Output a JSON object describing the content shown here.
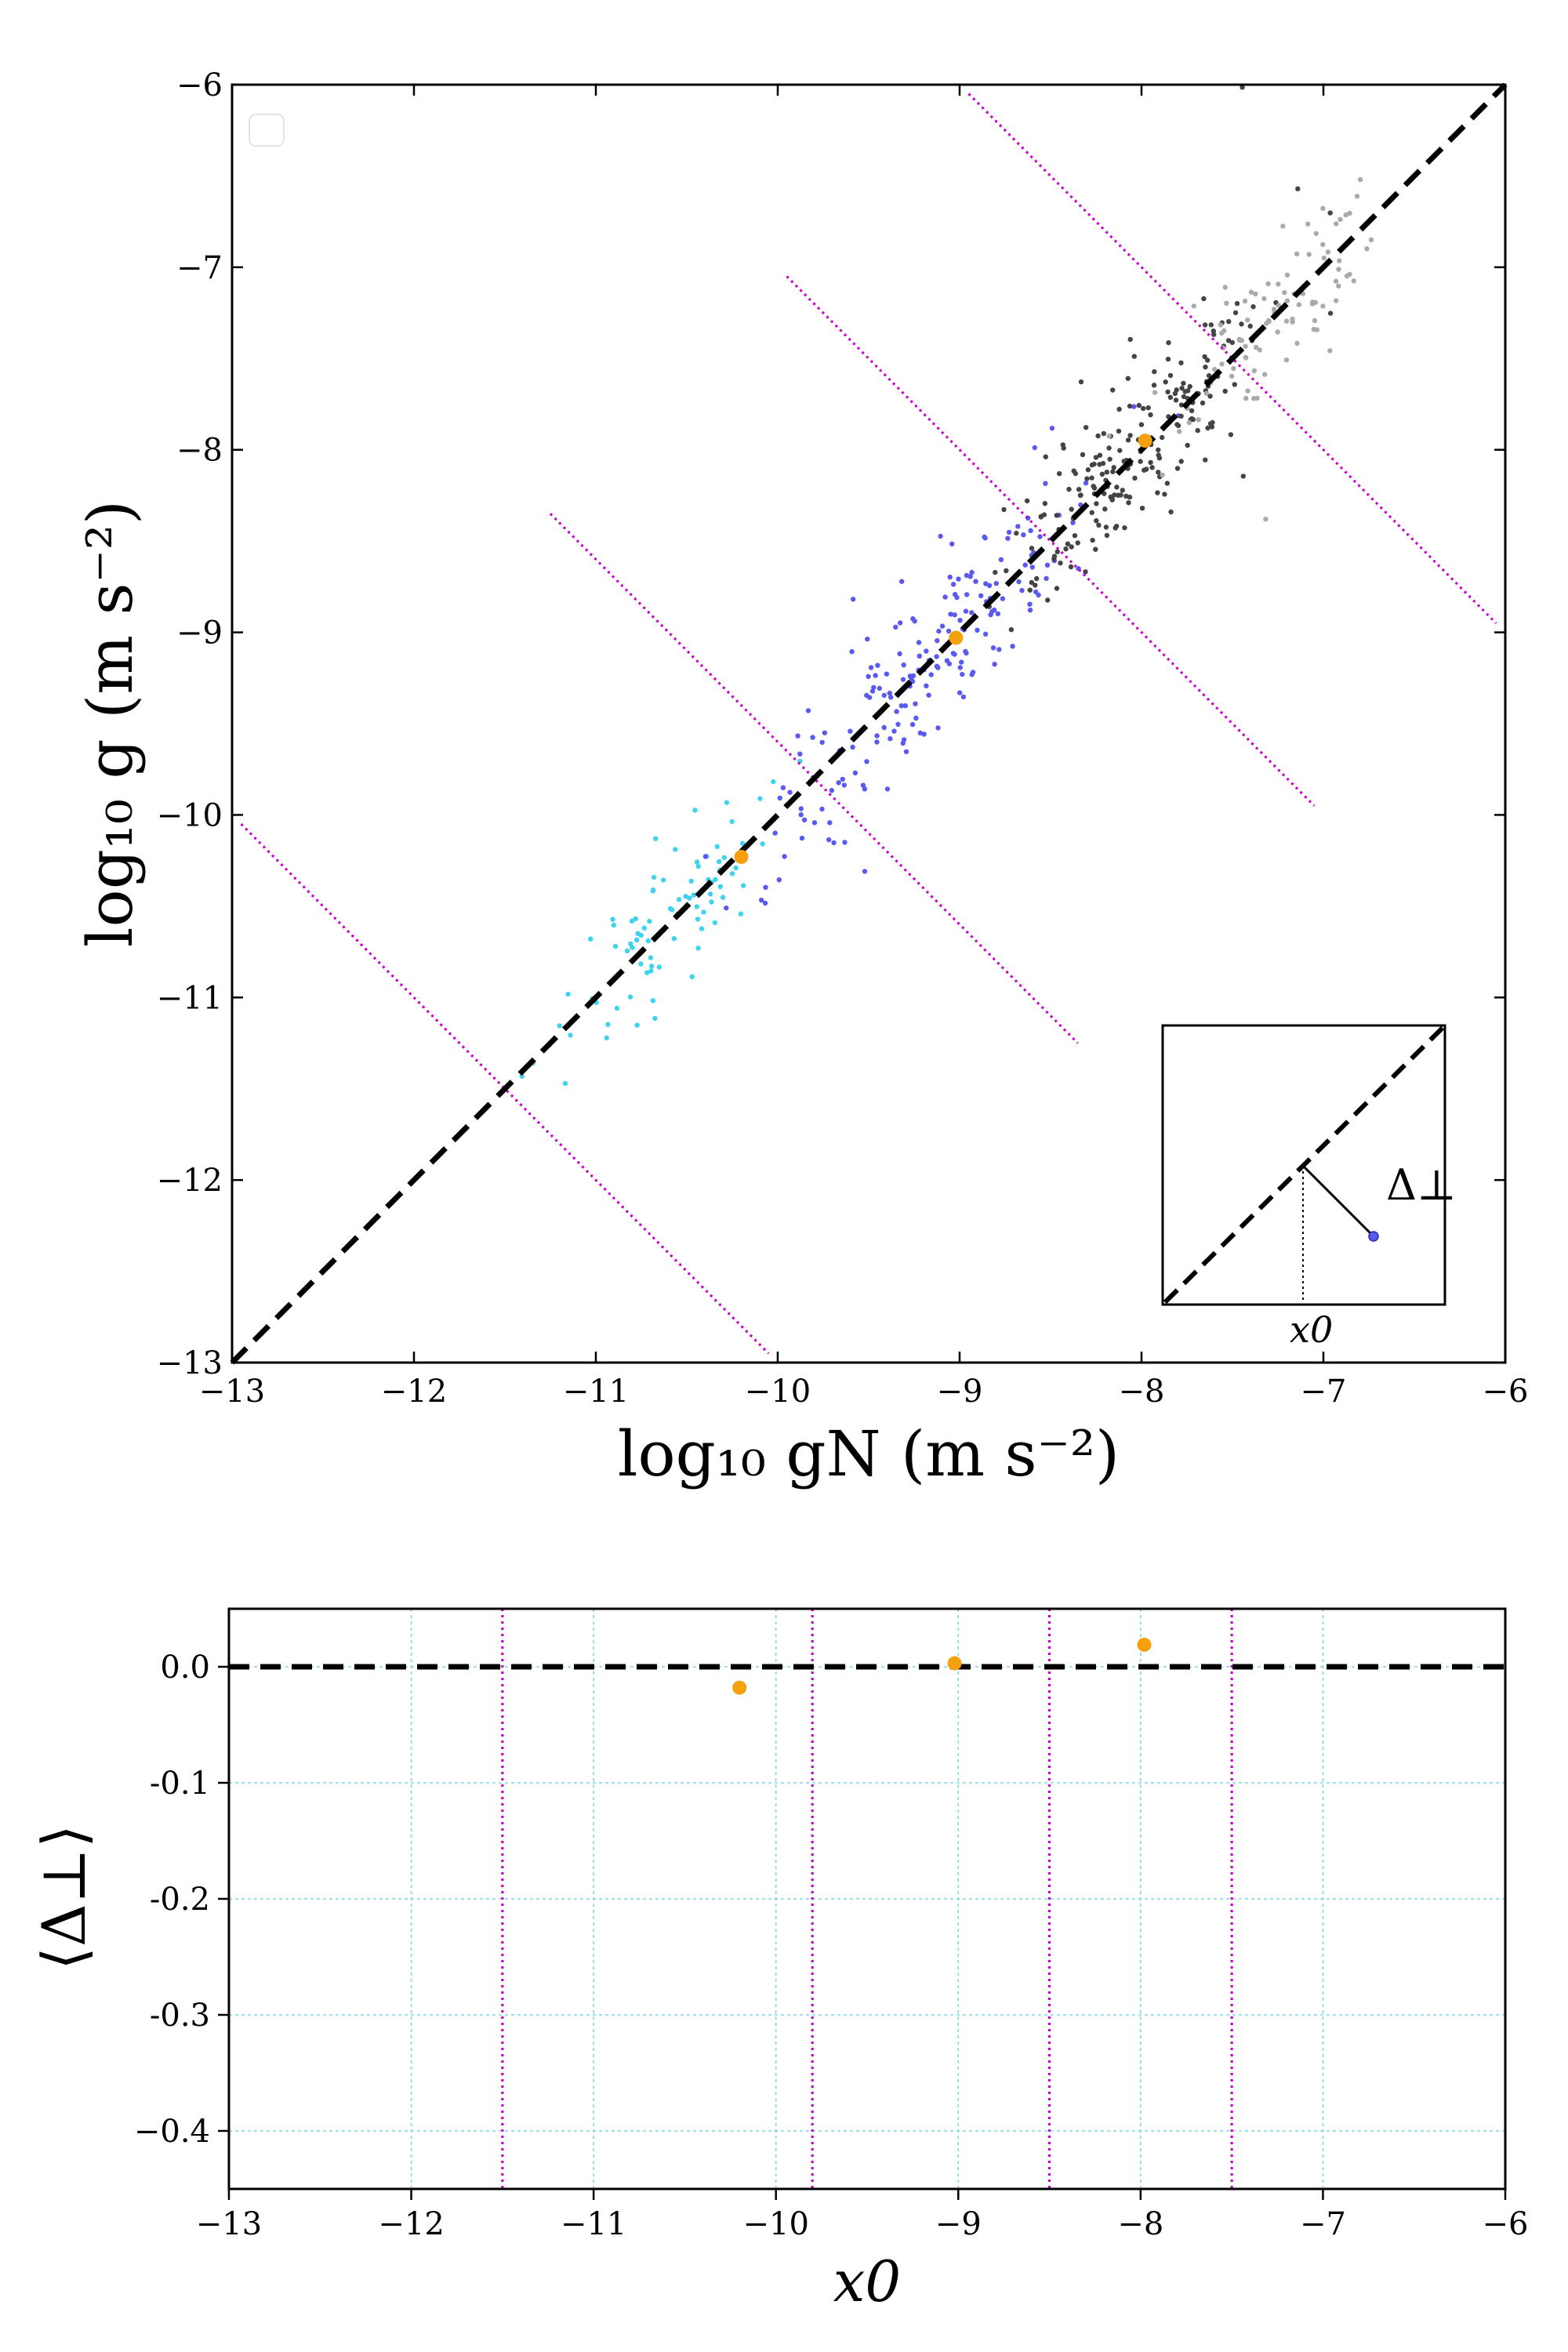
{
  "chart_data": [
    {
      "type": "scatter",
      "title": "",
      "xlabel": "log₁₀ gN (m s⁻²)",
      "ylabel": "log₁₀ g (m s⁻²)",
      "xlim": [
        -13,
        -6
      ],
      "ylim": [
        -13,
        -6
      ],
      "xticks": [
        -13,
        -12,
        -11,
        -10,
        -9,
        -8,
        -7,
        -6
      ],
      "yticks": [
        -13,
        -12,
        -11,
        -10,
        -9,
        -8,
        -7,
        -6
      ],
      "tick_labels_x": [
        "−13",
        "−12",
        "−11",
        "−10",
        "−9",
        "−8",
        "−7",
        "−6"
      ],
      "tick_labels_y": [
        "−13",
        "−12",
        "−11",
        "−10",
        "−9",
        "−8",
        "−7",
        "−6"
      ],
      "grid": false,
      "legend": "upper-left, empty",
      "one_to_one_line": {
        "x": [
          -13,
          -6
        ],
        "y": [
          -13,
          -6
        ],
        "style": "dashed",
        "color": "#000000"
      },
      "bin_boundaries_x0": [
        -11.5,
        -9.8,
        -8.5,
        -7.5
      ],
      "boundary_color": "#cc00cc",
      "binned_means": [
        {
          "x": -10.2,
          "y": -10.23
        },
        {
          "x": -9.02,
          "y": -9.03
        },
        {
          "x": -7.98,
          "y": -7.95
        }
      ],
      "mean_color": "#f5a00f",
      "point_groups": [
        {
          "color": "#3fd3ee",
          "x_center": -10.6,
          "count": 85
        },
        {
          "color": "#5a5af0",
          "x_center": -9.2,
          "count": 190
        },
        {
          "color": "#444444",
          "x_center": -8.0,
          "count": 210
        },
        {
          "color": "#aaaaaa",
          "x_center": -7.3,
          "count": 95
        }
      ],
      "inset": {
        "delta_label": "Δ⊥",
        "x0_label": "x0"
      }
    },
    {
      "type": "scatter",
      "title": "",
      "xlabel": "x0",
      "ylabel": "⟨Δ⊥⟩",
      "xlim": [
        -13,
        -6
      ],
      "ylim": [
        -0.45,
        0.05
      ],
      "xticks": [
        -13,
        -12,
        -11,
        -10,
        -9,
        -8,
        -7,
        -6
      ],
      "yticks": [
        0.0,
        -0.1,
        -0.2,
        -0.3,
        -0.4
      ],
      "tick_labels_x": [
        "−13",
        "−12",
        "−11",
        "−10",
        "−9",
        "−8",
        "−7",
        "−6"
      ],
      "tick_labels_y": [
        "0.0",
        "-0.1",
        "-0.2",
        "-0.3",
        "−0.4"
      ],
      "grid": true,
      "grid_color": "#7fd7e0",
      "zero_line": {
        "y": 0.0,
        "style": "dashed",
        "color": "#000000"
      },
      "vertical_lines_x": [
        -11.5,
        -9.8,
        -8.5,
        -7.5
      ],
      "points": [
        {
          "x": -10.2,
          "y": -0.018
        },
        {
          "x": -9.02,
          "y": 0.003
        },
        {
          "x": -7.98,
          "y": 0.019
        }
      ],
      "point_color": "#f5a00f"
    }
  ]
}
